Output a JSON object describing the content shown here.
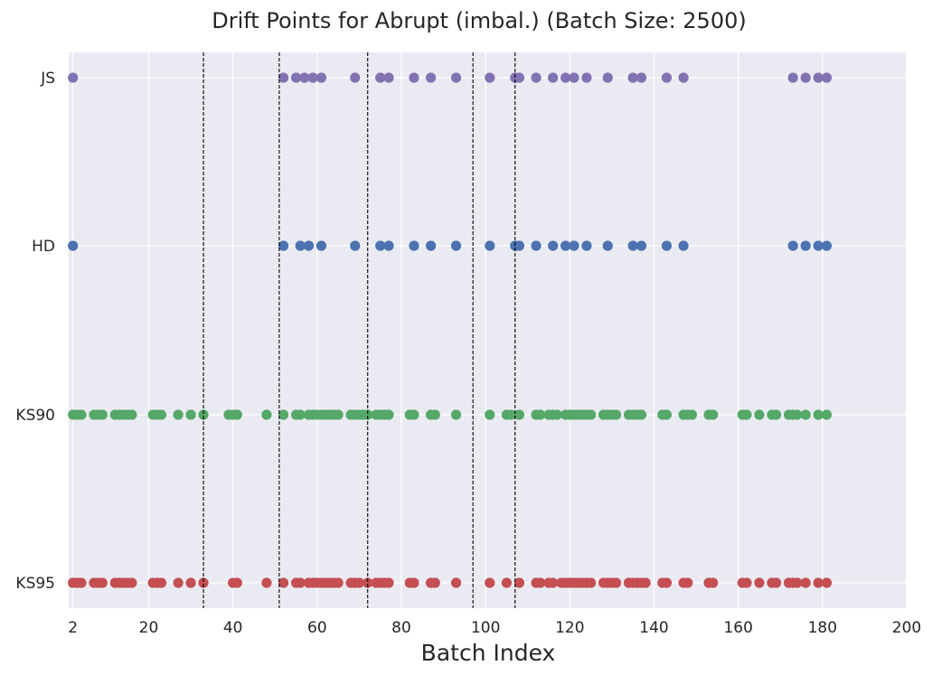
{
  "chart_data": {
    "type": "scatter",
    "title": "Drift Points for Abrupt (imbal.) (Batch Size: 2500)",
    "xlabel": "Batch Index",
    "ylabel": "",
    "xlim": [
      1,
      200
    ],
    "x_ticks": [
      2,
      20,
      40,
      60,
      80,
      100,
      120,
      140,
      160,
      180,
      200
    ],
    "categories": [
      "KS95",
      "KS90",
      "HD",
      "JS"
    ],
    "grid": true,
    "drift_lines": [
      33,
      51,
      72,
      97,
      107
    ],
    "series": [
      {
        "category": "JS",
        "color": "#8172b3",
        "x": [
          2,
          52,
          55,
          57,
          59,
          61,
          69,
          75,
          77,
          83,
          87,
          93,
          101,
          107,
          108,
          112,
          116,
          119,
          121,
          124,
          129,
          135,
          137,
          143,
          147,
          173,
          176,
          179,
          181
        ]
      },
      {
        "category": "HD",
        "color": "#4c72b0",
        "x": [
          2,
          52,
          56,
          58,
          61,
          69,
          75,
          77,
          83,
          87,
          93,
          101,
          107,
          108,
          112,
          116,
          119,
          121,
          124,
          129,
          135,
          137,
          143,
          147,
          173,
          176,
          179,
          181
        ]
      },
      {
        "category": "KS90",
        "color": "#55a868",
        "x": [
          2,
          3,
          4,
          7,
          8,
          9,
          12,
          13,
          14,
          15,
          16,
          21,
          22,
          23,
          27,
          30,
          33,
          39,
          40,
          41,
          48,
          52,
          55,
          56,
          58,
          59,
          60,
          61,
          62,
          63,
          64,
          65,
          68,
          69,
          70,
          71,
          72,
          74,
          75,
          76,
          77,
          82,
          83,
          87,
          88,
          93,
          101,
          105,
          106,
          108,
          112,
          113,
          115,
          116,
          117,
          119,
          120,
          121,
          122,
          123,
          124,
          125,
          128,
          129,
          130,
          131,
          134,
          135,
          136,
          137,
          142,
          143,
          147,
          148,
          149,
          153,
          154,
          161,
          162,
          165,
          168,
          169,
          172,
          173,
          174,
          176,
          179,
          181
        ]
      },
      {
        "category": "KS95",
        "color": "#c44e52",
        "x": [
          2,
          3,
          4,
          7,
          8,
          9,
          12,
          13,
          14,
          15,
          16,
          21,
          22,
          23,
          27,
          30,
          33,
          40,
          41,
          48,
          52,
          55,
          56,
          58,
          59,
          60,
          61,
          62,
          63,
          64,
          65,
          68,
          69,
          70,
          72,
          74,
          75,
          76,
          77,
          82,
          83,
          87,
          88,
          93,
          101,
          105,
          108,
          112,
          113,
          115,
          116,
          118,
          119,
          120,
          121,
          122,
          123,
          124,
          125,
          128,
          129,
          130,
          131,
          134,
          135,
          136,
          137,
          138,
          142,
          143,
          147,
          148,
          153,
          154,
          161,
          162,
          165,
          168,
          169,
          172,
          173,
          174,
          176,
          179,
          181
        ]
      }
    ]
  }
}
